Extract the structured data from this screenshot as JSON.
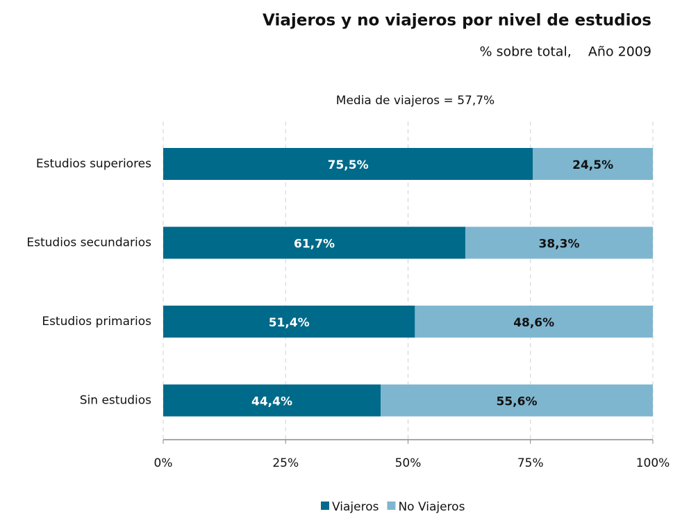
{
  "chart_data": {
    "type": "stacked_bar_horizontal",
    "title": "Viajeros y no viajeros por nivel de estudios",
    "subtitle": "% sobre total,    Año 2009",
    "annotation": "Media de viajeros = 57,7%",
    "categories": [
      "Estudios superiores",
      "Estudios secundarios",
      "Estudios primarios",
      "Sin estudios"
    ],
    "series": [
      {
        "name": "Viajeros",
        "color": "#006a8a",
        "values": [
          75.5,
          61.7,
          51.4,
          44.4
        ],
        "value_labels": [
          "75,5%",
          "61,7%",
          "51,4%",
          "44,4%"
        ]
      },
      {
        "name": "No Viajeros",
        "color": "#7fb6cf",
        "values": [
          24.5,
          38.3,
          48.6,
          55.6
        ],
        "value_labels": [
          "24,5%",
          "38,3%",
          "48,6%",
          "55,6%"
        ]
      }
    ],
    "xlim": [
      0,
      100
    ],
    "xticks": [
      {
        "value": 0,
        "label": "0%"
      },
      {
        "value": 25,
        "label": "25%"
      },
      {
        "value": 50,
        "label": "50%"
      },
      {
        "value": 75,
        "label": "75%"
      },
      {
        "value": 100,
        "label": "100%"
      }
    ],
    "grid": true,
    "legend": "bottom"
  }
}
